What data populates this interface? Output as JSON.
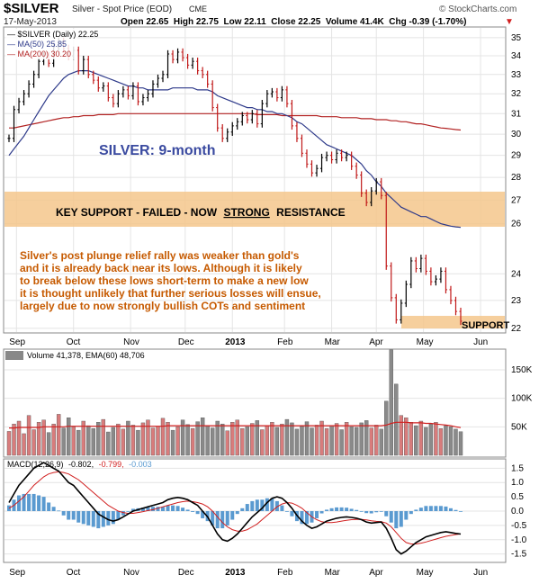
{
  "header": {
    "symbol": "$SILVER",
    "name": "Silver - Spot Price (EOD)",
    "exchange": "CME",
    "watermark": "© StockCharts.com",
    "date": "17-May-2013",
    "quote": "Open 22.65  High 22.75  Low 22.11  Close 22.25  Volume 41.4K  Chg -0.39 (-1.70%)",
    "quote_arrow": "▼"
  },
  "legend": {
    "price": "$SILVER (Daily) 22.25",
    "ma50": "MA(50) 25.85",
    "ma200": "MA(200) 30.20",
    "volume": "Volume 41,378, EMA(60) 48,706",
    "macd_label": "MACD(12,26,9)",
    "macd_v1": "-0.802,",
    "macd_v2": "-0.799,",
    "macd_v3": "-0.003"
  },
  "annotations": {
    "title": "SILVER: 9-month",
    "band_label": "KEY SUPPORT - FAILED - NOW",
    "band_strong": "STRONG",
    "band_after": "RESISTANCE",
    "support": "SUPPORT",
    "commentary": [
      "Silver's post plunge relief rally was weaker than gold's",
      "and it is already back near its lows. Although it is likely",
      "to break below these lows short-term to make a new low",
      "it is thought unlikely that further serious losses will ensue,",
      "largely due to now strongly bullish COTs and sentiment"
    ]
  },
  "colors": {
    "accent_orange": "#f5c78c",
    "text_blue": "#3a4aa0",
    "text_orange": "#c65a00",
    "ma50": "#2e3a8a",
    "ma200": "#b22222",
    "vol_up": "#d87c7c",
    "vol_down": "#8a8a8a",
    "macd": "#000000",
    "signal": "#d11f1f",
    "hist": "#5a9ad0"
  },
  "chart_data": [
    {
      "type": "candlestick",
      "title": "$SILVER (Daily)",
      "x_ticks": [
        "Sep",
        "Oct",
        "Nov",
        "Dec",
        "2013",
        "Feb",
        "Mar",
        "Apr",
        "May",
        "Jun"
      ],
      "y_ticks": [
        22,
        23,
        24,
        26,
        27,
        28,
        29,
        30,
        31,
        32,
        33,
        34,
        35
      ],
      "ylim": [
        21.9,
        35.5
      ],
      "scale": "log",
      "grid": true,
      "close": [
        29.8,
        31.2,
        31.6,
        32.0,
        32.5,
        33.0,
        33.7,
        34.0,
        33.6,
        34.5,
        34.8,
        34.4,
        34.0,
        34.3,
        33.2,
        33.8,
        33.0,
        32.7,
        32.3,
        32.4,
        31.8,
        31.5,
        32.0,
        32.2,
        31.9,
        32.4,
        31.6,
        31.8,
        32.0,
        32.5,
        32.8,
        33.0,
        34.1,
        33.8,
        34.2,
        33.9,
        33.5,
        33.7,
        33.2,
        33.0,
        32.5,
        31.3,
        30.3,
        29.8,
        30.1,
        30.4,
        30.6,
        30.9,
        30.7,
        31.0,
        30.5,
        31.5,
        32.0,
        32.1,
        31.8,
        32.2,
        31.5,
        30.4,
        29.8,
        29.1,
        28.6,
        28.2,
        28.4,
        28.9,
        29.0,
        28.8,
        29.1,
        28.9,
        29.0,
        28.5,
        28.1,
        27.3,
        26.9,
        27.4,
        27.8,
        27.2,
        24.3,
        23.1,
        22.3,
        22.9,
        23.6,
        24.5,
        24.2,
        24.6,
        24.1,
        23.7,
        23.8,
        24.1,
        23.4,
        23.0,
        22.6,
        22.25
      ],
      "ma50": [
        29.0,
        29.3,
        29.6,
        29.9,
        30.3,
        30.7,
        31.1,
        31.5,
        31.9,
        32.2,
        32.5,
        32.8,
        33.0,
        33.1,
        33.2,
        33.2,
        33.2,
        33.1,
        33.0,
        32.9,
        32.8,
        32.7,
        32.6,
        32.5,
        32.4,
        32.4,
        32.3,
        32.3,
        32.2,
        32.2,
        32.2,
        32.2,
        32.2,
        32.3,
        32.3,
        32.3,
        32.3,
        32.3,
        32.2,
        32.2,
        32.2,
        32.1,
        31.9,
        31.8,
        31.7,
        31.6,
        31.5,
        31.4,
        31.3,
        31.3,
        31.2,
        31.2,
        31.1,
        31.1,
        31.0,
        31.0,
        30.9,
        30.8,
        30.6,
        30.5,
        30.3,
        30.1,
        29.9,
        29.7,
        29.5,
        29.4,
        29.3,
        29.2,
        29.1,
        29.0,
        28.8,
        28.6,
        28.3,
        28.1,
        27.8,
        27.6,
        27.3,
        27.1,
        26.9,
        26.7,
        26.6,
        26.5,
        26.4,
        26.3,
        26.3,
        26.2,
        26.1,
        26.0,
        25.95,
        25.9,
        25.87,
        25.85
      ],
      "ma200": [
        30.3,
        30.3,
        30.35,
        30.4,
        30.45,
        30.5,
        30.55,
        30.6,
        30.65,
        30.7,
        30.75,
        30.8,
        30.8,
        30.85,
        30.85,
        30.9,
        30.9,
        30.9,
        30.95,
        30.95,
        30.95,
        30.95,
        31.0,
        31.0,
        31.0,
        31.0,
        31.0,
        31.0,
        31.0,
        31.0,
        31.0,
        31.0,
        31.0,
        31.0,
        31.0,
        31.0,
        31.0,
        31.0,
        31.0,
        31.0,
        31.0,
        31.0,
        31.0,
        31.0,
        31.0,
        31.0,
        31.0,
        31.0,
        31.0,
        31.0,
        30.95,
        30.95,
        30.95,
        30.95,
        30.95,
        30.9,
        30.9,
        30.9,
        30.9,
        30.9,
        30.9,
        30.9,
        30.9,
        30.85,
        30.85,
        30.85,
        30.85,
        30.8,
        30.8,
        30.8,
        30.8,
        30.75,
        30.75,
        30.75,
        30.7,
        30.7,
        30.7,
        30.65,
        30.65,
        30.6,
        30.6,
        30.55,
        30.5,
        30.5,
        30.45,
        30.4,
        30.35,
        30.3,
        30.28,
        30.25,
        30.22,
        30.2
      ]
    },
    {
      "type": "bar",
      "title": "Volume",
      "y_ticks": [
        "50K",
        "100K",
        "150K"
      ],
      "ylim": [
        0,
        180
      ],
      "values": [
        42,
        55,
        60,
        38,
        70,
        45,
        58,
        62,
        40,
        55,
        72,
        48,
        66,
        50,
        44,
        60,
        52,
        47,
        58,
        63,
        41,
        49,
        55,
        46,
        60,
        53,
        44,
        57,
        62,
        48,
        51,
        65,
        58,
        44,
        50,
        62,
        54,
        47,
        59,
        66,
        52,
        48,
        60,
        55,
        43,
        58,
        62,
        47,
        50,
        56,
        61,
        45,
        52,
        58,
        49,
        55,
        63,
        57,
        46,
        51,
        59,
        48,
        53,
        60,
        47,
        52,
        56,
        45,
        58,
        50,
        49,
        57,
        61,
        48,
        53,
        46,
        95,
        185,
        125,
        70,
        66,
        58,
        52,
        60,
        49,
        55,
        58,
        47,
        52,
        50,
        46,
        41.4
      ],
      "ema": [
        48,
        48,
        49,
        49,
        49,
        49,
        49,
        50,
        50,
        50,
        50,
        50,
        51,
        51,
        51,
        51,
        51,
        51,
        51,
        51,
        51,
        51,
        51,
        51,
        51,
        51,
        51,
        51,
        51,
        51,
        51,
        51,
        52,
        52,
        52,
        52,
        52,
        52,
        52,
        52,
        52,
        52,
        52,
        52,
        52,
        52,
        52,
        52,
        52,
        52,
        52,
        52,
        52,
        52,
        52,
        52,
        52,
        52,
        52,
        52,
        52,
        52,
        52,
        52,
        52,
        52,
        52,
        52,
        52,
        52,
        52,
        52,
        52,
        52,
        52,
        52,
        53,
        56,
        58,
        58,
        58,
        57,
        57,
        57,
        56,
        56,
        55,
        54,
        53,
        52,
        50,
        48.7
      ],
      "ema_period": 60
    },
    {
      "type": "line",
      "title": "MACD(12,26,9)",
      "y_ticks": [
        -1.5,
        -1.0,
        -0.5,
        0.0,
        0.5,
        1.0,
        1.5
      ],
      "ylim": [
        -1.7,
        1.7
      ],
      "macd": [
        0.3,
        0.6,
        0.9,
        1.1,
        1.3,
        1.5,
        1.6,
        1.7,
        1.6,
        1.5,
        1.4,
        1.2,
        1.0,
        0.9,
        0.7,
        0.5,
        0.3,
        0.1,
        -0.1,
        -0.2,
        -0.3,
        -0.35,
        -0.3,
        -0.2,
        -0.1,
        0.0,
        0.05,
        0.1,
        0.15,
        0.2,
        0.25,
        0.3,
        0.4,
        0.45,
        0.48,
        0.45,
        0.4,
        0.3,
        0.2,
        0.0,
        -0.2,
        -0.5,
        -0.8,
        -1.0,
        -1.05,
        -0.95,
        -0.8,
        -0.6,
        -0.4,
        -0.2,
        -0.05,
        0.1,
        0.3,
        0.45,
        0.5,
        0.45,
        0.3,
        0.1,
        -0.15,
        -0.35,
        -0.5,
        -0.6,
        -0.55,
        -0.45,
        -0.35,
        -0.3,
        -0.25,
        -0.22,
        -0.2,
        -0.22,
        -0.25,
        -0.3,
        -0.38,
        -0.42,
        -0.4,
        -0.38,
        -0.6,
        -0.95,
        -1.35,
        -1.5,
        -1.4,
        -1.25,
        -1.1,
        -1.0,
        -0.9,
        -0.85,
        -0.8,
        -0.75,
        -0.72,
        -0.75,
        -0.78,
        -0.802
      ],
      "signal": [
        0.1,
        0.2,
        0.35,
        0.5,
        0.7,
        0.9,
        1.05,
        1.2,
        1.3,
        1.35,
        1.38,
        1.35,
        1.3,
        1.2,
        1.1,
        0.95,
        0.8,
        0.65,
        0.5,
        0.35,
        0.2,
        0.1,
        0.0,
        -0.05,
        -0.08,
        -0.08,
        -0.05,
        -0.02,
        0.02,
        0.05,
        0.1,
        0.15,
        0.2,
        0.25,
        0.3,
        0.33,
        0.35,
        0.33,
        0.3,
        0.25,
        0.15,
        0.0,
        -0.2,
        -0.4,
        -0.55,
        -0.65,
        -0.7,
        -0.7,
        -0.65,
        -0.55,
        -0.45,
        -0.3,
        -0.15,
        0.0,
        0.15,
        0.25,
        0.3,
        0.28,
        0.2,
        0.1,
        -0.05,
        -0.2,
        -0.3,
        -0.37,
        -0.4,
        -0.4,
        -0.38,
        -0.35,
        -0.32,
        -0.3,
        -0.29,
        -0.29,
        -0.31,
        -0.34,
        -0.36,
        -0.37,
        -0.42,
        -0.55,
        -0.75,
        -0.95,
        -1.1,
        -1.15,
        -1.15,
        -1.12,
        -1.08,
        -1.03,
        -0.98,
        -0.93,
        -0.88,
        -0.85,
        -0.82,
        -0.799
      ],
      "hist_value": -0.003
    }
  ]
}
